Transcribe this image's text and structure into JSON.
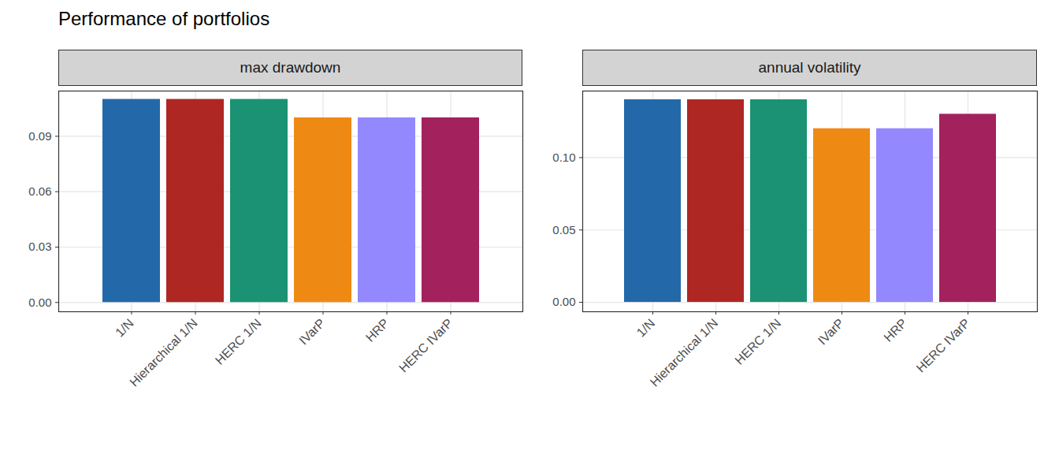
{
  "title": "Performance of portfolios",
  "chart_data": [
    {
      "type": "bar",
      "title": "max drawdown",
      "categories": [
        "1/N",
        "Hierarchical 1/N",
        "HERC 1/N",
        "IVarP",
        "HRP",
        "HERC IVarP"
      ],
      "values": [
        0.11,
        0.11,
        0.11,
        0.1,
        0.1,
        0.1
      ],
      "colors": [
        "#2369a9",
        "#ae2723",
        "#1b9273",
        "#ee8a14",
        "#9388fe",
        "#a3215d"
      ],
      "ylim": [
        -0.005,
        0.1145
      ],
      "yticks": [
        {
          "value": 0,
          "label": "0.00"
        },
        {
          "value": 0.03,
          "label": "0.03"
        },
        {
          "value": 0.06,
          "label": "0.06"
        },
        {
          "value": 0.09,
          "label": "0.09"
        }
      ],
      "grid": true
    },
    {
      "type": "bar",
      "title": "annual volatility",
      "categories": [
        "1/N",
        "Hierarchical 1/N",
        "HERC 1/N",
        "IVarP",
        "HRP",
        "HERC IVarP"
      ],
      "values": [
        0.14,
        0.14,
        0.14,
        0.12,
        0.12,
        0.13
      ],
      "colors": [
        "#2369a9",
        "#ae2723",
        "#1b9273",
        "#ee8a14",
        "#9388fe",
        "#a3215d"
      ],
      "ylim": [
        -0.0065,
        0.146
      ],
      "yticks": [
        {
          "value": 0,
          "label": "0.00"
        },
        {
          "value": 0.05,
          "label": "0.05"
        },
        {
          "value": 0.1,
          "label": "0.10"
        }
      ],
      "grid": true
    }
  ]
}
